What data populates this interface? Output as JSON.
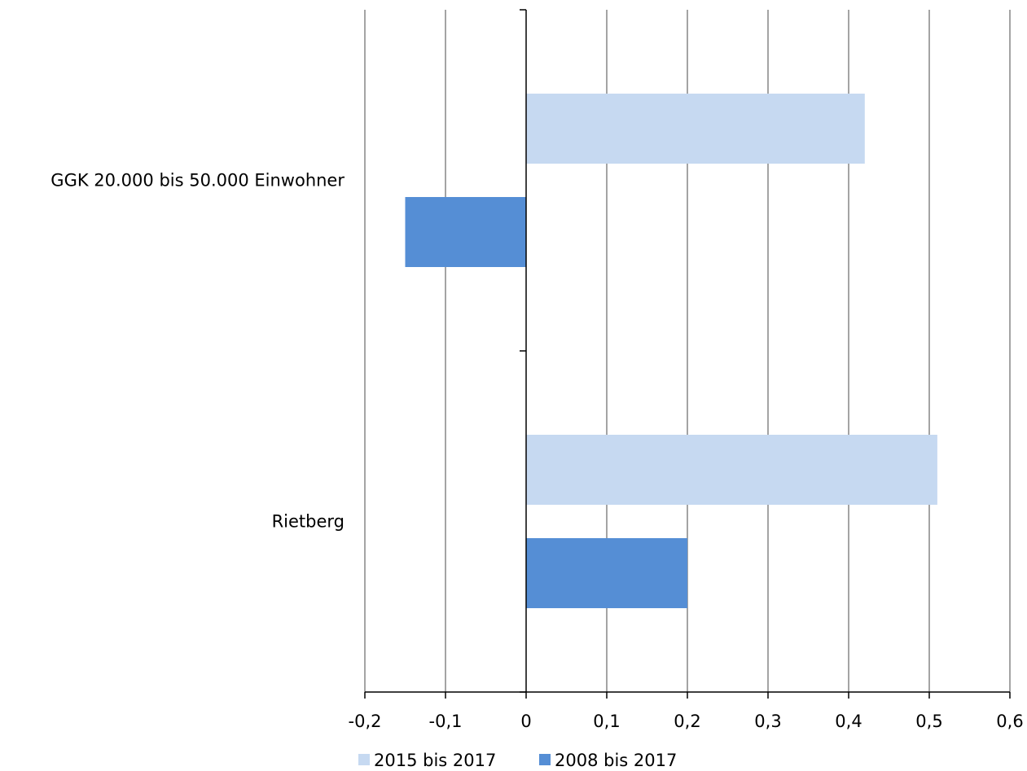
{
  "chart_data": {
    "type": "bar",
    "orientation": "horizontal",
    "categories": [
      "GGK 20.000 bis 50.000 Einwohner",
      "Rietberg"
    ],
    "series": [
      {
        "name": "2015 bis 2017",
        "values": [
          0.42,
          0.51
        ],
        "color": "#c6d9f1"
      },
      {
        "name": "2008 bis 2017",
        "values": [
          -0.15,
          0.2
        ],
        "color": "#558ed5"
      }
    ],
    "xlim": [
      -0.2,
      0.6
    ],
    "xticks": [
      "-0,2",
      "-0,1",
      "0",
      "0,1",
      "0,2",
      "0,3",
      "0,4",
      "0,5",
      "0,6"
    ],
    "grid": true,
    "legend": "bottom-center"
  }
}
